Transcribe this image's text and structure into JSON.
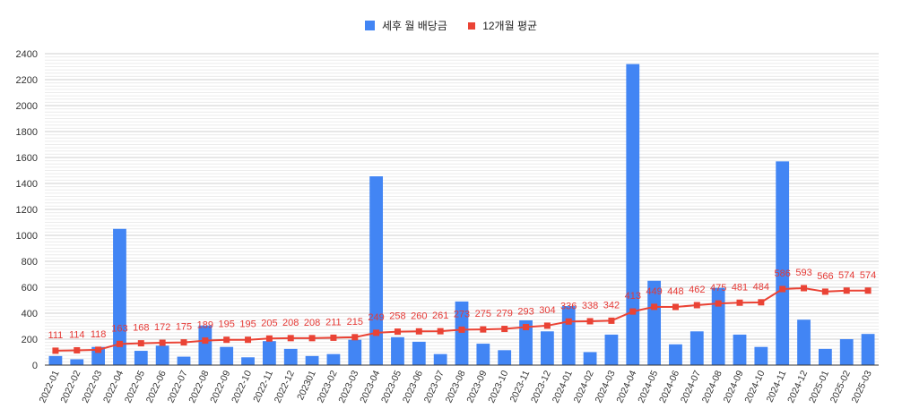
{
  "colors": {
    "bar": "#4285f4",
    "line": "#ea4335",
    "grid": "#d9d9d9",
    "axis": "#333333",
    "label": "#e53935"
  },
  "chart_data": {
    "type": "bar",
    "legend_position": "top",
    "grid": true,
    "ylim": [
      0,
      2400
    ],
    "yticks": [
      0,
      200,
      400,
      600,
      800,
      1000,
      1200,
      1400,
      1600,
      1800,
      2000,
      2200,
      2400
    ],
    "categories": [
      "2022-01",
      "2022-02",
      "2022-03",
      "2022-04",
      "2022-05",
      "2022-06",
      "2022-07",
      "2022-08",
      "2022-09",
      "2022-10",
      "2022-11",
      "2022-12",
      "202301",
      "2023-02",
      "2023-03",
      "2023-04",
      "2023-05",
      "2023-06",
      "2023-07",
      "2023-08",
      "2023-09",
      "2023-10",
      "2023-11",
      "2023-12",
      "2024-01",
      "2024-02",
      "2024-03",
      "2024-04",
      "2024-05",
      "2024-06",
      "2024-07",
      "2024-08",
      "2024-09",
      "2024-10",
      "2024-11",
      "2024-12",
      "2025-01",
      "2025-02",
      "2025-03"
    ],
    "series": [
      {
        "name": "세후 월 배당금",
        "kind": "bar",
        "values": [
          70,
          45,
          140,
          1050,
          110,
          150,
          65,
          305,
          140,
          60,
          185,
          125,
          70,
          85,
          195,
          1455,
          215,
          180,
          85,
          490,
          165,
          115,
          345,
          260,
          455,
          100,
          235,
          2320,
          650,
          160,
          260,
          595,
          235,
          140,
          1570,
          350,
          125,
          200,
          240
        ]
      },
      {
        "name": "12개월 평균",
        "kind": "line",
        "values": [
          111,
          114,
          118,
          163,
          168,
          172,
          175,
          189,
          195,
          195,
          205,
          208,
          208,
          211,
          215,
          249,
          258,
          260,
          261,
          273,
          275,
          279,
          293,
          304,
          336,
          338,
          342,
          413,
          449,
          448,
          462,
          475,
          481,
          484,
          586,
          593,
          566,
          574,
          574
        ]
      }
    ]
  }
}
